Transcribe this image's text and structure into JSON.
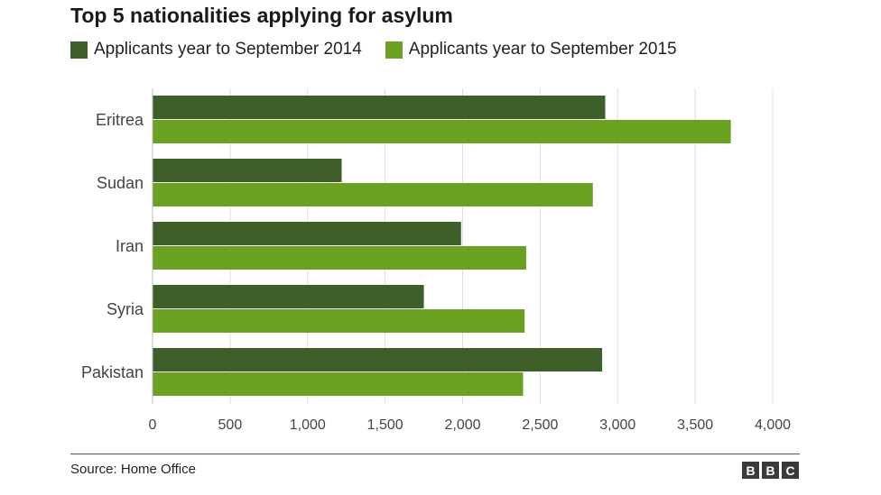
{
  "chart_data": {
    "type": "bar",
    "orientation": "horizontal",
    "title": "Top 5 nationalities applying for asylum",
    "categories": [
      "Eritrea",
      "Sudan",
      "Iran",
      "Syria",
      "Pakistan"
    ],
    "series": [
      {
        "name": "Applicants year to September 2014",
        "color": "#3f5f2a",
        "values": [
          2920,
          1220,
          1990,
          1750,
          2900
        ]
      },
      {
        "name": "Applicants year to September 2015",
        "color": "#6aa121",
        "values": [
          3730,
          2840,
          2410,
          2400,
          2390
        ]
      }
    ],
    "xlim": [
      0,
      4000
    ],
    "xticks": [
      0,
      500,
      1000,
      1500,
      2000,
      2500,
      3000,
      3500,
      4000
    ],
    "xtick_labels": [
      "0",
      "500",
      "1,000",
      "1,500",
      "2,000",
      "2,500",
      "3,000",
      "3,500",
      "4,000"
    ],
    "grid": true,
    "legend_position": "top-left"
  },
  "footer": {
    "source": "Source: Home Office",
    "logo": [
      "B",
      "B",
      "C"
    ]
  }
}
